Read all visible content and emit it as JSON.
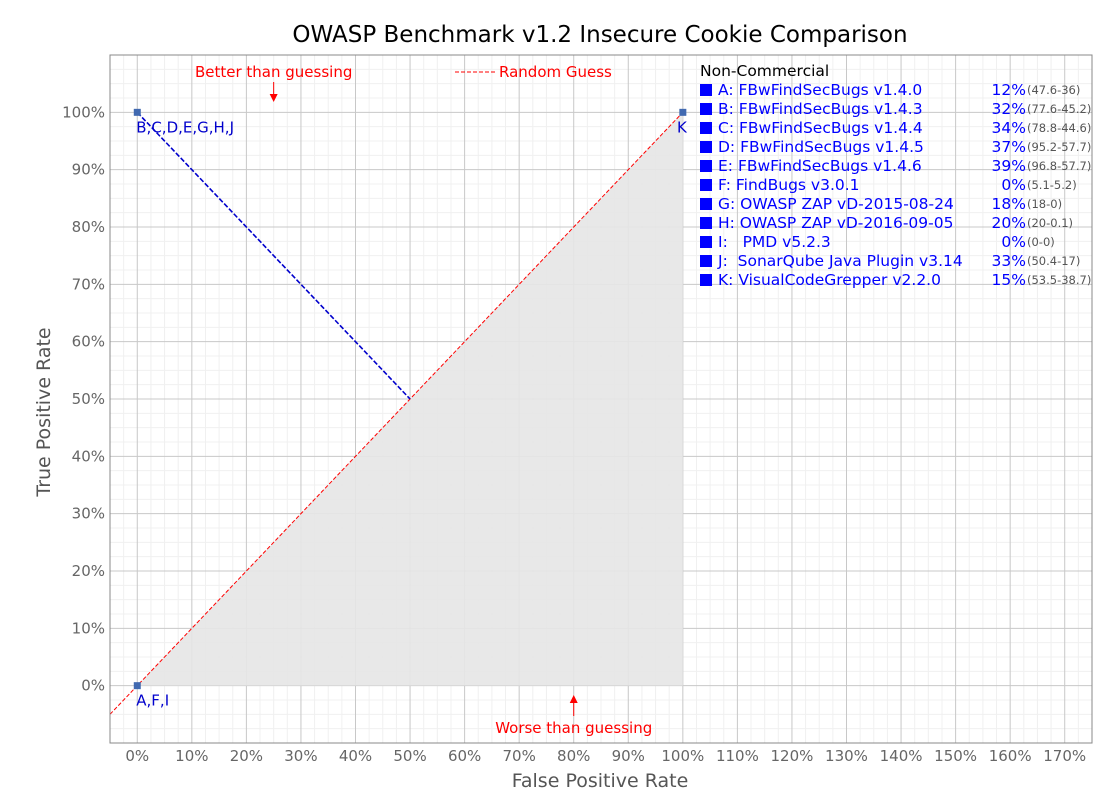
{
  "chart_data": {
    "type": "scatter",
    "title": "OWASP Benchmark v1.2 Insecure Cookie Comparison",
    "xlabel": "False Positive Rate",
    "ylabel": "True Positive Rate",
    "xlim": [
      -5,
      175
    ],
    "ylim": [
      -10,
      110
    ],
    "x_ticks": [
      "0%",
      "10%",
      "20%",
      "30%",
      "40%",
      "50%",
      "60%",
      "70%",
      "80%",
      "90%",
      "100%",
      "110%",
      "120%",
      "130%",
      "140%",
      "150%",
      "160%",
      "170%"
    ],
    "y_ticks": [
      "0%",
      "10%",
      "20%",
      "30%",
      "40%",
      "50%",
      "60%",
      "70%",
      "80%",
      "90%",
      "100%"
    ],
    "grid": true,
    "points": [
      {
        "label": "B,C,D,E,G,H,J",
        "x": 0,
        "y": 100
      },
      {
        "label": "K",
        "x": 100,
        "y": 100
      },
      {
        "label": "A,F,I",
        "x": 0,
        "y": 0
      }
    ],
    "average_line": {
      "x": [
        0,
        50
      ],
      "y": [
        100,
        50
      ]
    },
    "random_guess_line": {
      "x": [
        -5,
        100
      ],
      "y": [
        -5,
        100
      ]
    },
    "annotations": {
      "better": "Better than guessing",
      "worse": "Worse than guessing",
      "random": "Random Guess"
    },
    "legend": {
      "title": "Non-Commercial",
      "placement": "top-right",
      "entries": [
        {
          "name": "A: FBwFindSecBugs v1.4.0",
          "score": "12%",
          "range": "(47.6-36)"
        },
        {
          "name": "B: FBwFindSecBugs v1.4.3",
          "score": "32%",
          "range": "(77.6-45.2)"
        },
        {
          "name": "C: FBwFindSecBugs v1.4.4",
          "score": "34%",
          "range": "(78.8-44.6)"
        },
        {
          "name": "D: FBwFindSecBugs v1.4.5",
          "score": "37%",
          "range": "(95.2-57.7)"
        },
        {
          "name": "E: FBwFindSecBugs v1.4.6",
          "score": "39%",
          "range": "(96.8-57.7)"
        },
        {
          "name": "F: FindBugs v3.0.1",
          "score": "0%",
          "range": "(5.1-5.2)"
        },
        {
          "name": "G: OWASP ZAP vD-2015-08-24",
          "score": "18%",
          "range": "(18-0)"
        },
        {
          "name": "H: OWASP ZAP vD-2016-09-05",
          "score": "20%",
          "range": "(20-0.1)"
        },
        {
          "name": "I:   PMD v5.2.3",
          "score": "0%",
          "range": "(0-0)"
        },
        {
          "name": "J:  SonarQube Java Plugin v3.14",
          "score": "33%",
          "range": "(50.4-17)"
        },
        {
          "name": "K: VisualCodeGrepper v2.2.0",
          "score": "15%",
          "range": "(53.5-38.7)"
        }
      ]
    },
    "colors": {
      "points": "#4169b0",
      "point_labels": "#0000cc",
      "average_line": "#0000cc",
      "random_line": "#ff0000",
      "shade": "#e6e6e6",
      "legend": "#0000ff"
    }
  }
}
